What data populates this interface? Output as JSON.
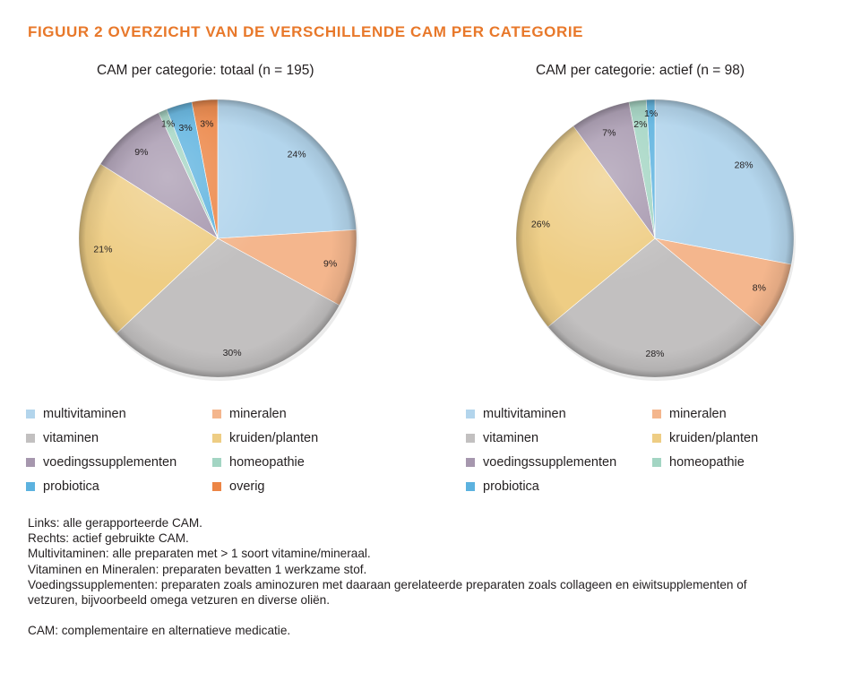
{
  "figure_title": "FIGUUR 2 OVERZICHT VAN DE VERSCHILLENDE CAM PER CATEGORIE",
  "colors": {
    "multivitaminen": "#b3d5ec",
    "mineralen": "#f4b68d",
    "vitaminen": "#c2c0c0",
    "kruiden/planten": "#eecd84",
    "voedingssupplementen": "#a697ae",
    "homeopathie": "#a3d5c3",
    "probiotica": "#5cb2df",
    "overig": "#ec8545",
    "title": "#e8782a"
  },
  "chart_data": [
    {
      "type": "pie",
      "title": "CAM per categorie: totaal (n = 195)",
      "categories": [
        "multivitaminen",
        "mineralen",
        "vitaminen",
        "kruiden/planten",
        "voedingssupplementen",
        "homeopathie",
        "probiotica",
        "overig"
      ],
      "values": [
        24,
        9,
        30,
        21,
        9,
        1,
        3,
        3
      ],
      "labels": [
        "24%",
        "9%",
        "30%",
        "21%",
        "9%",
        "1%",
        "3%",
        "3%"
      ],
      "legend": [
        "multivitaminen",
        "mineralen",
        "vitaminen",
        "kruiden/planten",
        "voedingssupplementen",
        "homeopathie",
        "probiotica",
        "overig"
      ],
      "legend_position": "bottom"
    },
    {
      "type": "pie",
      "title": "CAM per categorie: actief (n = 98)",
      "categories": [
        "multivitaminen",
        "mineralen",
        "vitaminen",
        "kruiden/planten",
        "voedingssupplementen",
        "homeopathie",
        "probiotica"
      ],
      "values": [
        28,
        8,
        28,
        26,
        7,
        2,
        1
      ],
      "labels": [
        "28%",
        "8%",
        "28%",
        "26%",
        "7%",
        "2%",
        "1%"
      ],
      "legend": [
        "multivitaminen",
        "mineralen",
        "vitaminen",
        "kruiden/planten",
        "voedingssupplementen",
        "homeopathie",
        "probiotica"
      ],
      "legend_position": "bottom"
    }
  ],
  "notes": [
    "Links: alle gerapporteerde CAM.",
    "Rechts: actief gebruikte CAM.",
    "Multivitaminen: alle preparaten met > 1 soort vitamine/mineraal.",
    "Vitaminen en Mineralen: preparaten bevatten 1 werkzame stof.",
    "Voedingssupplementen: preparaten zoals aminozuren met daaraan gerelateerde preparaten zoals collageen en eiwitsupplementen of",
    "vetzuren, bijvoorbeeld omega vetzuren en diverse oliën.",
    "",
    "CAM: complementaire en alternatieve medicatie."
  ]
}
